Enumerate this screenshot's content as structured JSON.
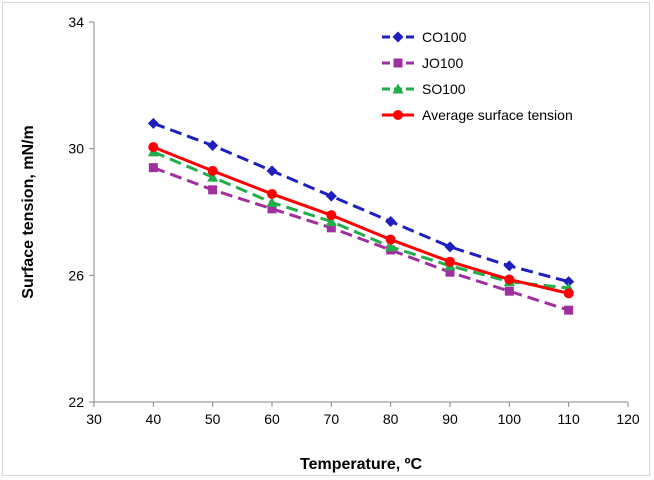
{
  "chart_data": {
    "type": "line",
    "title": "",
    "xlabel": "Temperature, ºC",
    "ylabel": "Surface tension, mN/m",
    "xlim": [
      30,
      120
    ],
    "ylim": [
      22,
      34
    ],
    "x_ticks": [
      30,
      40,
      50,
      60,
      70,
      80,
      90,
      100,
      110,
      120
    ],
    "y_ticks": [
      22,
      26,
      30,
      34
    ],
    "grid": false,
    "legend_position": "top-right",
    "x": [
      40,
      50,
      60,
      70,
      80,
      90,
      100,
      110
    ],
    "series": [
      {
        "name": "CO100",
        "values": [
          30.8,
          30.1,
          29.3,
          28.5,
          27.7,
          26.9,
          26.3,
          25.8
        ],
        "color": "#1f1fbf",
        "line_style": "dashed",
        "marker": "diamond"
      },
      {
        "name": "JO100",
        "values": [
          29.4,
          28.7,
          28.1,
          27.5,
          26.8,
          26.1,
          25.5,
          24.9
        ],
        "color": "#a0309f",
        "line_style": "dashed",
        "marker": "square"
      },
      {
        "name": "SO100",
        "values": [
          29.9,
          29.1,
          28.3,
          27.7,
          26.9,
          26.3,
          25.8,
          25.6
        ],
        "color": "#1fae4a",
        "line_style": "dashed",
        "marker": "triangle"
      },
      {
        "name": "Average surface tension",
        "values": [
          30.05,
          29.3,
          28.57,
          27.9,
          27.13,
          26.43,
          25.87,
          25.43
        ],
        "color": "#ff0000",
        "line_style": "solid",
        "marker": "circle"
      }
    ]
  }
}
